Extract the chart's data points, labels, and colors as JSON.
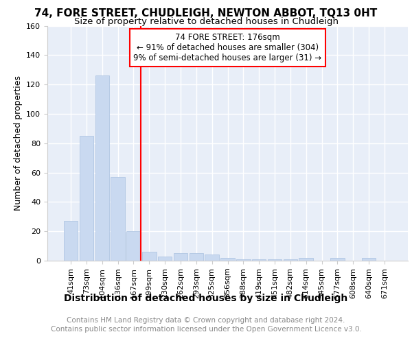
{
  "title1": "74, FORE STREET, CHUDLEIGH, NEWTON ABBOT, TQ13 0HT",
  "title2": "Size of property relative to detached houses in Chudleigh",
  "xlabel": "Distribution of detached houses by size in Chudleigh",
  "ylabel": "Number of detached properties",
  "categories": [
    "41sqm",
    "73sqm",
    "104sqm",
    "136sqm",
    "167sqm",
    "199sqm",
    "230sqm",
    "262sqm",
    "293sqm",
    "325sqm",
    "356sqm",
    "388sqm",
    "419sqm",
    "451sqm",
    "482sqm",
    "514sqm",
    "545sqm",
    "577sqm",
    "608sqm",
    "640sqm",
    "671sqm"
  ],
  "values": [
    27,
    85,
    126,
    57,
    20,
    6,
    3,
    5,
    5,
    4,
    2,
    1,
    1,
    1,
    1,
    2,
    0,
    2,
    0,
    2,
    0
  ],
  "bar_color": "#c9d9f0",
  "bar_edge_color": "#a8c0e0",
  "annotation_text": "74 FORE STREET: 176sqm\n← 91% of detached houses are smaller (304)\n9% of semi-detached houses are larger (31) →",
  "annotation_box_color": "white",
  "annotation_box_edge": "red",
  "vline_color": "red",
  "ylim": [
    0,
    160
  ],
  "yticks": [
    0,
    20,
    40,
    60,
    80,
    100,
    120,
    140,
    160
  ],
  "footer1": "Contains HM Land Registry data © Crown copyright and database right 2024.",
  "footer2": "Contains public sector information licensed under the Open Government Licence v3.0.",
  "bg_color": "#ffffff",
  "plot_bg_color": "#e8eef8",
  "grid_color": "white",
  "title1_fontsize": 11,
  "title2_fontsize": 9.5,
  "xlabel_fontsize": 10,
  "ylabel_fontsize": 9,
  "tick_fontsize": 8,
  "footer_fontsize": 7.5,
  "annotation_fontsize": 8.5,
  "vline_bar_index": 4
}
